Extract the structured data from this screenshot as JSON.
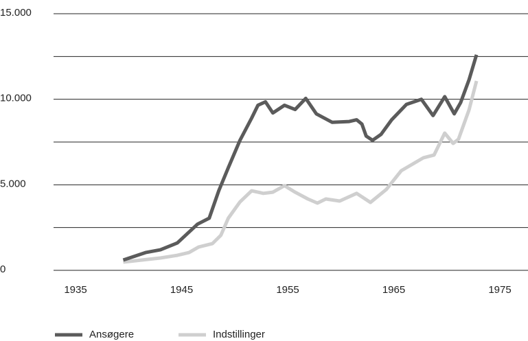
{
  "chart_data": {
    "type": "line",
    "xlim": [
      1930.5,
      1979
    ],
    "xticks": [
      1935,
      1945,
      1955,
      1965,
      1975
    ],
    "ylim": [
      0,
      15000
    ],
    "yticks": [
      0,
      {
        "value": 5000,
        "label": "5.000"
      },
      {
        "value": 10000,
        "label": "10.000"
      },
      {
        "value": 15000,
        "label": "15.000"
      }
    ],
    "minor_yticks": [
      2500,
      7500,
      12500
    ],
    "grid": true,
    "legend": "bottom-left",
    "series": [
      {
        "name": "Ansøgere",
        "color": "#5b5b5b",
        "x": [
          1939.5,
          1941.6,
          1943,
          1944.6,
          1946.5,
          1947.6,
          1948.5,
          1949.4,
          1950.5,
          1951.6,
          1952.2,
          1952.9,
          1953.6,
          1954.7,
          1955.7,
          1956.7,
          1957.7,
          1959.2,
          1960.8,
          1961.5,
          1962,
          1962.4,
          1963,
          1963.8,
          1964.8,
          1966.2,
          1967.6,
          1968.7,
          1969.8,
          1970.7,
          1971.3,
          1972.1,
          1972.8
        ],
        "values": [
          600,
          1040,
          1200,
          1600,
          2700,
          3050,
          4650,
          6000,
          7600,
          8900,
          9650,
          9850,
          9200,
          9650,
          9400,
          10050,
          9150,
          8650,
          8700,
          8800,
          8550,
          7850,
          7600,
          7950,
          8800,
          9700,
          10000,
          9050,
          10150,
          9150,
          9800,
          11150,
          12600
        ]
      },
      {
        "name": "Indstillinger",
        "color": "#cfcfcf",
        "x": [
          1939.5,
          1943,
          1944.6,
          1945.7,
          1946.6,
          1947.9,
          1948.7,
          1949.4,
          1950.5,
          1951.6,
          1952.7,
          1953.6,
          1954.7,
          1955.7,
          1956.9,
          1957.8,
          1958.6,
          1959.9,
          1961.5,
          1962.8,
          1964.3,
          1965.7,
          1967.8,
          1968.8,
          1969.8,
          1970.6,
          1971.1,
          1972.1,
          1972.8
        ],
        "values": [
          480,
          720,
          880,
          1040,
          1360,
          1560,
          2050,
          3050,
          4000,
          4650,
          4500,
          4570,
          4950,
          4570,
          4170,
          3930,
          4170,
          4050,
          4500,
          3970,
          4730,
          5820,
          6580,
          6740,
          8020,
          7420,
          7660,
          9390,
          11070
        ]
      }
    ]
  }
}
